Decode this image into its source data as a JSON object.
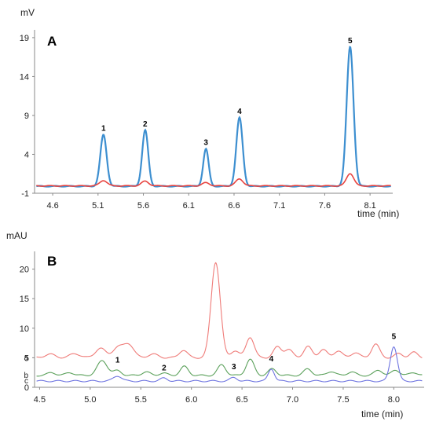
{
  "chart_data": [
    {
      "type": "line",
      "panel_label": "A",
      "ylabel": "mV",
      "xlabel": "time (min)",
      "xlim": [
        4.4,
        8.35
      ],
      "ylim": [
        -1,
        20
      ],
      "x_ticks": [
        "4.6",
        "5.1",
        "5.6",
        "6.1",
        "6.6",
        "7.1",
        "7.6",
        "8.1"
      ],
      "y_ticks": [
        "19",
        "14",
        "9",
        "4",
        "-1"
      ],
      "colors": {
        "blue": "#3d8fd0",
        "red": "#e8433f"
      },
      "series": [
        {
          "color_key": "blue",
          "baseline": -0.1,
          "peaks": [
            {
              "label": "1",
              "x": 5.16,
              "y": 6.6,
              "width": 0.035
            },
            {
              "label": "2",
              "x": 5.62,
              "y": 7.2,
              "width": 0.033
            },
            {
              "label": "3",
              "x": 6.29,
              "y": 4.8,
              "width": 0.03
            },
            {
              "label": "4",
              "x": 6.66,
              "y": 8.8,
              "width": 0.035
            },
            {
              "label": "5",
              "x": 7.88,
              "y": 17.9,
              "width": 0.038
            }
          ]
        },
        {
          "color_key": "red",
          "baseline": -0.05,
          "peaks": [
            {
              "x": 5.16,
              "y": 0.7,
              "width": 0.04
            },
            {
              "x": 5.62,
              "y": 0.6,
              "width": 0.04
            },
            {
              "x": 6.29,
              "y": 0.4,
              "width": 0.04
            },
            {
              "x": 6.66,
              "y": 0.9,
              "width": 0.04
            },
            {
              "x": 7.88,
              "y": 1.6,
              "width": 0.04
            }
          ]
        }
      ]
    },
    {
      "type": "line",
      "panel_label": "B",
      "ylabel": "mAU",
      "xlabel": "time (min)",
      "xlim": [
        4.45,
        8.3
      ],
      "ylim": [
        0,
        23
      ],
      "x_ticks": [
        "4.5",
        "5.0",
        "5.5",
        "6.0",
        "6.5",
        "7.0",
        "7.5",
        "8.0"
      ],
      "y_ticks": [
        "20",
        "15",
        "10",
        "5",
        "0"
      ],
      "colors": {
        "red": "#ef7b78",
        "green": "#5aa05a",
        "blue": "#6e74e0"
      },
      "peak_labels": [
        {
          "label": "1",
          "x": 5.27,
          "y": 3.9
        },
        {
          "label": "2",
          "x": 5.73,
          "y": 2.6
        },
        {
          "label": "3",
          "x": 6.42,
          "y": 2.8
        },
        {
          "label": "4",
          "x": 6.79,
          "y": 4.1
        },
        {
          "label": "5",
          "x": 8.0,
          "y": 7.9
        }
      ],
      "series": [
        {
          "trace_label": "a",
          "color_key": "red",
          "baseline": 5.0,
          "peaks": [
            {
              "x": 4.6,
              "y": 0.6,
              "width": 0.05
            },
            {
              "x": 4.85,
              "y": 0.7,
              "width": 0.05
            },
            {
              "x": 5.1,
              "y": 1.6,
              "width": 0.05
            },
            {
              "x": 5.27,
              "y": 1.7,
              "width": 0.05
            },
            {
              "x": 5.38,
              "y": 2.3,
              "width": 0.05
            },
            {
              "x": 5.62,
              "y": 0.6,
              "width": 0.05
            },
            {
              "x": 5.92,
              "y": 1.3,
              "width": 0.04
            },
            {
              "x": 6.24,
              "y": 16.2,
              "width": 0.045
            },
            {
              "x": 6.43,
              "y": 1.2,
              "width": 0.04
            },
            {
              "x": 6.58,
              "y": 3.5,
              "width": 0.04
            },
            {
              "x": 6.85,
              "y": 1.8,
              "width": 0.04
            },
            {
              "x": 6.96,
              "y": 1.4,
              "width": 0.04
            },
            {
              "x": 7.15,
              "y": 1.9,
              "width": 0.04
            },
            {
              "x": 7.3,
              "y": 1.4,
              "width": 0.04
            },
            {
              "x": 7.45,
              "y": 1.2,
              "width": 0.04
            },
            {
              "x": 7.62,
              "y": 0.9,
              "width": 0.04
            },
            {
              "x": 7.82,
              "y": 2.3,
              "width": 0.04
            },
            {
              "x": 8.05,
              "y": 0.7,
              "width": 0.04
            },
            {
              "x": 8.2,
              "y": 0.9,
              "width": 0.04
            }
          ]
        },
        {
          "trace_label": "b",
          "color_key": "green",
          "baseline": 2.0,
          "peaks": [
            {
              "x": 4.62,
              "y": 0.5,
              "width": 0.04
            },
            {
              "x": 4.8,
              "y": 0.5,
              "width": 0.04
            },
            {
              "x": 5.12,
              "y": 2.5,
              "width": 0.05
            },
            {
              "x": 5.27,
              "y": 0.8,
              "width": 0.04
            },
            {
              "x": 5.55,
              "y": 0.6,
              "width": 0.04
            },
            {
              "x": 5.72,
              "y": 0.4,
              "width": 0.04
            },
            {
              "x": 5.93,
              "y": 1.5,
              "width": 0.04
            },
            {
              "x": 6.3,
              "y": 1.8,
              "width": 0.04
            },
            {
              "x": 6.58,
              "y": 2.7,
              "width": 0.04
            },
            {
              "x": 6.8,
              "y": 1.1,
              "width": 0.04
            },
            {
              "x": 7.15,
              "y": 1.1,
              "width": 0.04
            },
            {
              "x": 7.38,
              "y": 0.7,
              "width": 0.04
            },
            {
              "x": 7.58,
              "y": 0.6,
              "width": 0.04
            },
            {
              "x": 7.85,
              "y": 0.9,
              "width": 0.04
            },
            {
              "x": 8.02,
              "y": 0.9,
              "width": 0.04
            },
            {
              "x": 8.2,
              "y": 0.5,
              "width": 0.04
            }
          ]
        },
        {
          "trace_label": "c",
          "color_key": "blue",
          "baseline": 1.05,
          "peaks": [
            {
              "x": 5.27,
              "y": 0.9,
              "width": 0.04
            },
            {
              "x": 5.73,
              "y": 0.5,
              "width": 0.035
            },
            {
              "x": 6.42,
              "y": 0.6,
              "width": 0.035
            },
            {
              "x": 6.79,
              "y": 2.1,
              "width": 0.03
            },
            {
              "x": 8.0,
              "y": 5.9,
              "width": 0.035
            }
          ]
        }
      ]
    }
  ]
}
